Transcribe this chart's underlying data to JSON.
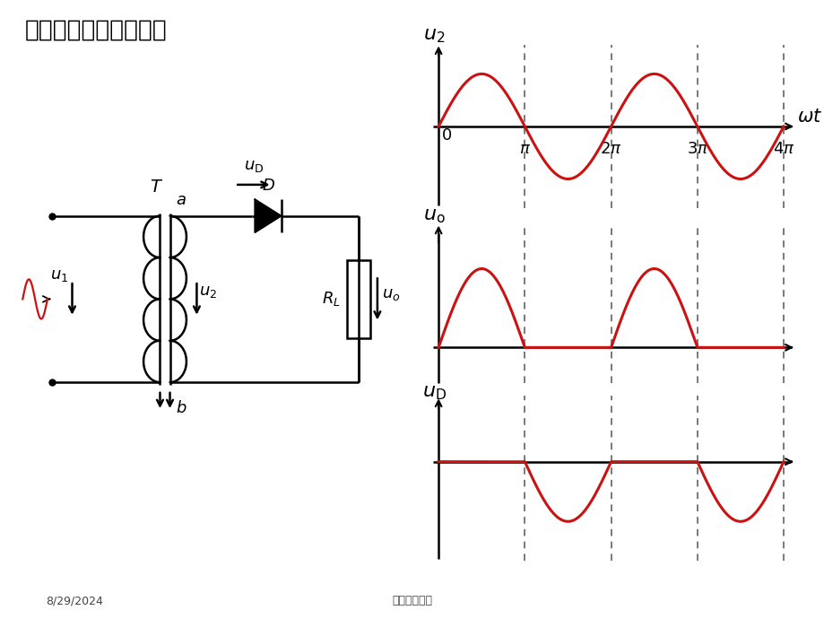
{
  "title": "单相半波整流电压波形",
  "subtitle_date": "8/29/2024",
  "subtitle_text": "电工电子技术",
  "bg_color": "#ffffff",
  "wave_color": "#cc1111",
  "axis_color": "#000000",
  "line_color": "#000000",
  "dashed_color": "#555555",
  "title_fontsize": 19,
  "label_fontsize": 15,
  "tick_fontsize": 13,
  "wave_linewidth": 2.2,
  "axis_linewidth": 1.8,
  "circuit_linewidth": 1.8
}
